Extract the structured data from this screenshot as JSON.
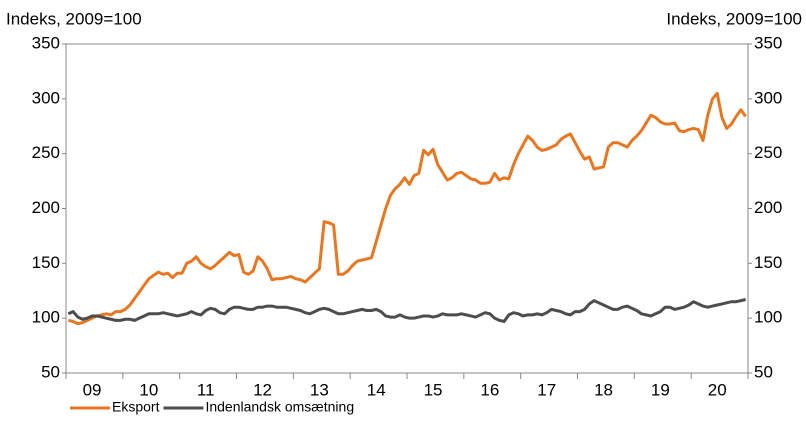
{
  "chart_data": {
    "type": "line",
    "y_title": "Indeks, 2009=100",
    "y2_title": "Indeks, 2009=100",
    "categories": [
      null,
      null,
      null,
      null,
      null,
      "09",
      null,
      null,
      null,
      null,
      null,
      null,
      null,
      null,
      null,
      null,
      null,
      "10",
      null,
      null,
      null,
      null,
      null,
      null,
      null,
      null,
      null,
      null,
      null,
      "11",
      null,
      null,
      null,
      null,
      null,
      null,
      null,
      null,
      null,
      null,
      null,
      "12",
      null,
      null,
      null,
      null,
      null,
      null,
      null,
      null,
      null,
      null,
      null,
      "13",
      null,
      null,
      null,
      null,
      null,
      null,
      null,
      null,
      null,
      null,
      null,
      "14",
      null,
      null,
      null,
      null,
      null,
      null,
      null,
      null,
      null,
      null,
      null,
      "15",
      null,
      null,
      null,
      null,
      null,
      null,
      null,
      null,
      null,
      null,
      null,
      "16",
      null,
      null,
      null,
      null,
      null,
      null,
      null,
      null,
      null,
      null,
      null,
      "17",
      null,
      null,
      null,
      null,
      null,
      null,
      null,
      null,
      null,
      null,
      null,
      "18",
      null,
      null,
      null,
      null,
      null,
      null,
      null,
      null,
      null,
      null,
      null,
      "19",
      null,
      null,
      null,
      null,
      null,
      null,
      null,
      null,
      null,
      null,
      null,
      "20",
      null,
      null,
      null,
      null,
      null,
      null
    ],
    "series": [
      {
        "name": "Eksport",
        "color": "#e87722",
        "values": [
          98,
          97,
          95,
          96,
          98,
          100,
          102,
          103,
          104,
          103,
          106,
          106,
          108,
          112,
          118,
          124,
          130,
          136,
          139,
          142,
          140,
          141,
          137,
          141,
          141,
          150,
          152,
          156,
          150,
          147,
          145,
          148,
          152,
          156,
          160,
          157,
          158,
          142,
          140,
          143,
          156,
          152,
          145,
          135,
          136,
          136,
          137,
          138,
          136,
          135,
          133,
          137,
          141,
          145,
          188,
          187,
          185,
          140,
          140,
          143,
          148,
          152,
          153,
          154,
          155,
          170,
          185,
          200,
          212,
          218,
          222,
          228,
          222,
          230,
          232,
          253,
          249,
          254,
          240,
          233,
          226,
          228,
          232,
          233,
          230,
          227,
          226,
          223,
          223,
          224,
          232,
          226,
          228,
          227,
          240,
          250,
          258,
          266,
          262,
          256,
          253,
          254,
          256,
          258,
          263,
          266,
          268,
          260,
          252,
          245,
          247,
          236,
          237,
          238,
          256,
          260,
          260,
          258,
          256,
          262,
          266,
          271,
          278,
          285,
          283,
          279,
          277,
          277,
          278,
          271,
          270,
          272,
          273,
          272,
          262,
          285,
          300,
          305,
          283,
          273,
          277,
          284,
          290,
          284
        ]
      },
      {
        "name": "Indenlandsk omsætning",
        "color": "#4d4d4d",
        "values": [
          104,
          106,
          101,
          99,
          100,
          102,
          102,
          101,
          100,
          99,
          98,
          98,
          99,
          99,
          98,
          100,
          102,
          104,
          104,
          104,
          105,
          104,
          103,
          102,
          103,
          104,
          106,
          104,
          103,
          107,
          109,
          108,
          105,
          104,
          108,
          110,
          110,
          109,
          108,
          108,
          110,
          110,
          111,
          111,
          110,
          110,
          110,
          109,
          108,
          107,
          105,
          104,
          106,
          108,
          109,
          108,
          106,
          104,
          104,
          105,
          106,
          107,
          108,
          107,
          107,
          108,
          106,
          102,
          101,
          101,
          103,
          101,
          100,
          100,
          101,
          102,
          102,
          101,
          102,
          104,
          103,
          103,
          103,
          104,
          103,
          102,
          101,
          103,
          105,
          104,
          100,
          98,
          97,
          103,
          105,
          104,
          102,
          103,
          103,
          104,
          103,
          105,
          108,
          107,
          106,
          104,
          103,
          106,
          106,
          108,
          113,
          116,
          114,
          112,
          110,
          108,
          108,
          110,
          111,
          109,
          107,
          104,
          103,
          102,
          104,
          106,
          110,
          110,
          108,
          109,
          110,
          112,
          115,
          113,
          111,
          110,
          111,
          112,
          113,
          114,
          115,
          115,
          116,
          117
        ]
      }
    ],
    "ylim": [
      50,
      350
    ],
    "yticks": [
      50,
      100,
      150,
      200,
      250,
      300,
      350
    ],
    "y2lim": [
      50,
      350
    ],
    "y2ticks": [
      50,
      100,
      150,
      200,
      250,
      300,
      350
    ],
    "grid": false,
    "legend": "bottom"
  }
}
